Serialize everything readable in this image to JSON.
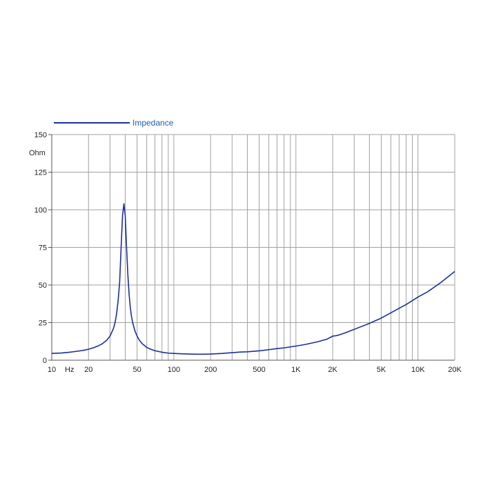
{
  "chart_data": {
    "type": "line",
    "title": "",
    "ylabel": "Ohm",
    "xlabel": "Hz",
    "x_scale": "log",
    "xlim": [
      10,
      20000
    ],
    "ylim": [
      0,
      150
    ],
    "grid": true,
    "legend_placement": "top-left",
    "y_ticks": [
      {
        "value": 0,
        "label": "0"
      },
      {
        "value": 25,
        "label": "25"
      },
      {
        "value": 50,
        "label": "50"
      },
      {
        "value": 75,
        "label": "75"
      },
      {
        "value": 100,
        "label": "100"
      },
      {
        "value": 125,
        "label": "125"
      },
      {
        "value": 150,
        "label": "150"
      }
    ],
    "x_tick_labels": [
      {
        "value": 10,
        "label": "10"
      },
      {
        "value": 20,
        "label": "20"
      },
      {
        "value": 50,
        "label": "50"
      },
      {
        "value": 100,
        "label": "100"
      },
      {
        "value": 200,
        "label": "200"
      },
      {
        "value": 500,
        "label": "500"
      },
      {
        "value": 1000,
        "label": "1K"
      },
      {
        "value": 2000,
        "label": "2K"
      },
      {
        "value": 5000,
        "label": "5K"
      },
      {
        "value": 10000,
        "label": "10K"
      },
      {
        "value": 20000,
        "label": "20K"
      }
    ],
    "x_gridlines": [
      10,
      20,
      30,
      40,
      50,
      60,
      70,
      80,
      90,
      100,
      200,
      300,
      400,
      500,
      600,
      700,
      800,
      900,
      1000,
      2000,
      3000,
      4000,
      5000,
      6000,
      7000,
      8000,
      9000,
      10000,
      20000
    ],
    "series": [
      {
        "name": "Impedance",
        "color": "#1a2d9c",
        "x": [
          10,
          12,
          14,
          16,
          18,
          20,
          22,
          24,
          26,
          28,
          30,
          32,
          33,
          34,
          35,
          36,
          37,
          38,
          39,
          40,
          41,
          42,
          43,
          44,
          45,
          46,
          48,
          50,
          52,
          55,
          60,
          65,
          70,
          80,
          90,
          100,
          120,
          150,
          180,
          200,
          250,
          300,
          350,
          400,
          500,
          600,
          700,
          800,
          1000,
          1200,
          1500,
          1800,
          2000,
          2200,
          2500,
          3000,
          4000,
          5000,
          6000,
          7000,
          8000,
          10000,
          12000,
          15000,
          18000,
          20000
        ],
        "y": [
          4.5,
          4.8,
          5.3,
          5.9,
          6.5,
          7.3,
          8.3,
          9.5,
          11,
          13,
          16,
          21,
          25,
          31,
          40,
          52,
          75,
          96,
          104,
          96,
          75,
          57,
          44,
          35,
          29,
          25,
          19.5,
          16,
          13.5,
          11,
          8.5,
          7.2,
          6.3,
          5.3,
          4.7,
          4.5,
          4.2,
          4,
          4,
          4.1,
          4.5,
          5,
          5.4,
          5.6,
          6.2,
          7,
          7.7,
          8.2,
          9.4,
          10.5,
          12.2,
          14,
          16,
          16.5,
          18,
          20.5,
          24.5,
          28,
          31.5,
          34.5,
          37,
          42,
          45.5,
          51,
          56,
          59
        ]
      }
    ]
  }
}
